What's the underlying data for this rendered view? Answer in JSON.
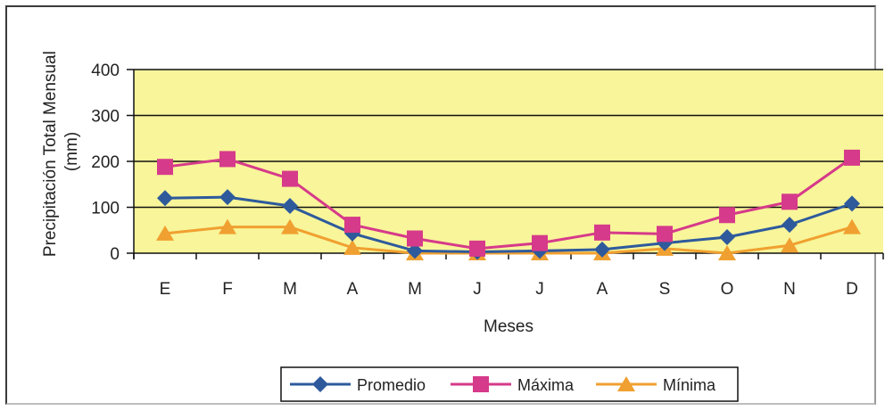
{
  "chart_data": {
    "type": "line",
    "categories": [
      "E",
      "F",
      "M",
      "A",
      "M",
      "J",
      "J",
      "A",
      "S",
      "O",
      "N",
      "D"
    ],
    "series": [
      {
        "name": "Promedio",
        "color": "#2e5a9c",
        "marker": "diamond",
        "values": [
          120,
          122,
          103,
          43,
          5,
          3,
          5,
          8,
          22,
          35,
          62,
          108
        ]
      },
      {
        "name": "Máxima",
        "color": "#d63a8a",
        "marker": "square",
        "values": [
          188,
          205,
          162,
          62,
          32,
          10,
          22,
          45,
          42,
          83,
          112,
          208
        ]
      },
      {
        "name": "Mínima",
        "color": "#f0a030",
        "marker": "triangle",
        "values": [
          43,
          57,
          57,
          12,
          0,
          0,
          0,
          0,
          10,
          0,
          17,
          57
        ]
      }
    ],
    "xlabel": "Meses",
    "ylabel": [
      "Precipitación Total Mensual",
      "(mm)"
    ],
    "ylim": [
      0,
      400
    ],
    "yticks": [
      0,
      100,
      200,
      300,
      400
    ],
    "grid": true,
    "legend": "bottom",
    "plot_background": "#f8f59a"
  }
}
